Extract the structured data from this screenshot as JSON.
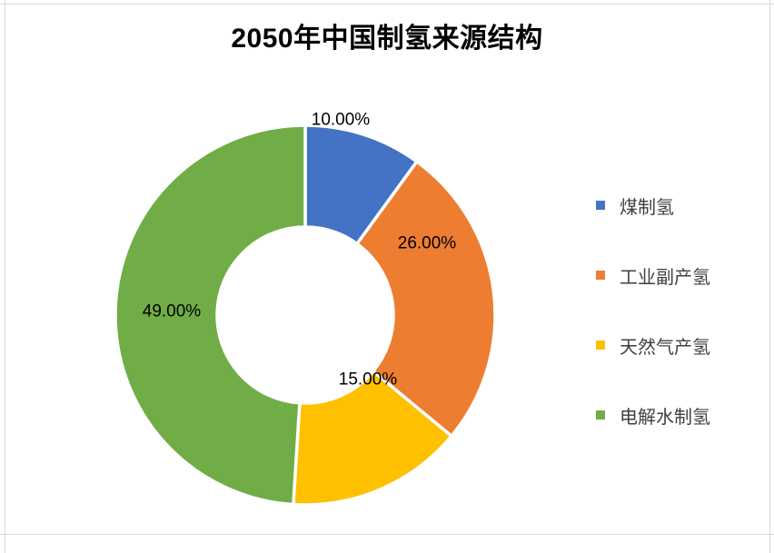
{
  "chart_data": {
    "type": "pie",
    "subtype": "donut",
    "title": "2050年中国制氢来源结构",
    "categories": [
      "煤制氢",
      "工业副产氢",
      "天然气产氢",
      "电解水制氢"
    ],
    "values": [
      10,
      26,
      15,
      49
    ],
    "data_labels": [
      "10.00%",
      "26.00%",
      "15.00%",
      "49.00%"
    ],
    "colors": [
      "#4472C4",
      "#ED7D31",
      "#FFC000",
      "#70AD47"
    ],
    "unit": "percent",
    "start_angle_deg": 0,
    "direction": "clockwise",
    "hole_ratio": 0.46,
    "legend_position": "right",
    "grid": "off"
  },
  "styles": {
    "background": "#FFFFFF",
    "frame_line_color": "#D9D9D9",
    "title_color": "#000000",
    "data_label_color": "#000000",
    "legend_text_color": "#404040",
    "slice_separator_color": "#FFFFFF"
  }
}
